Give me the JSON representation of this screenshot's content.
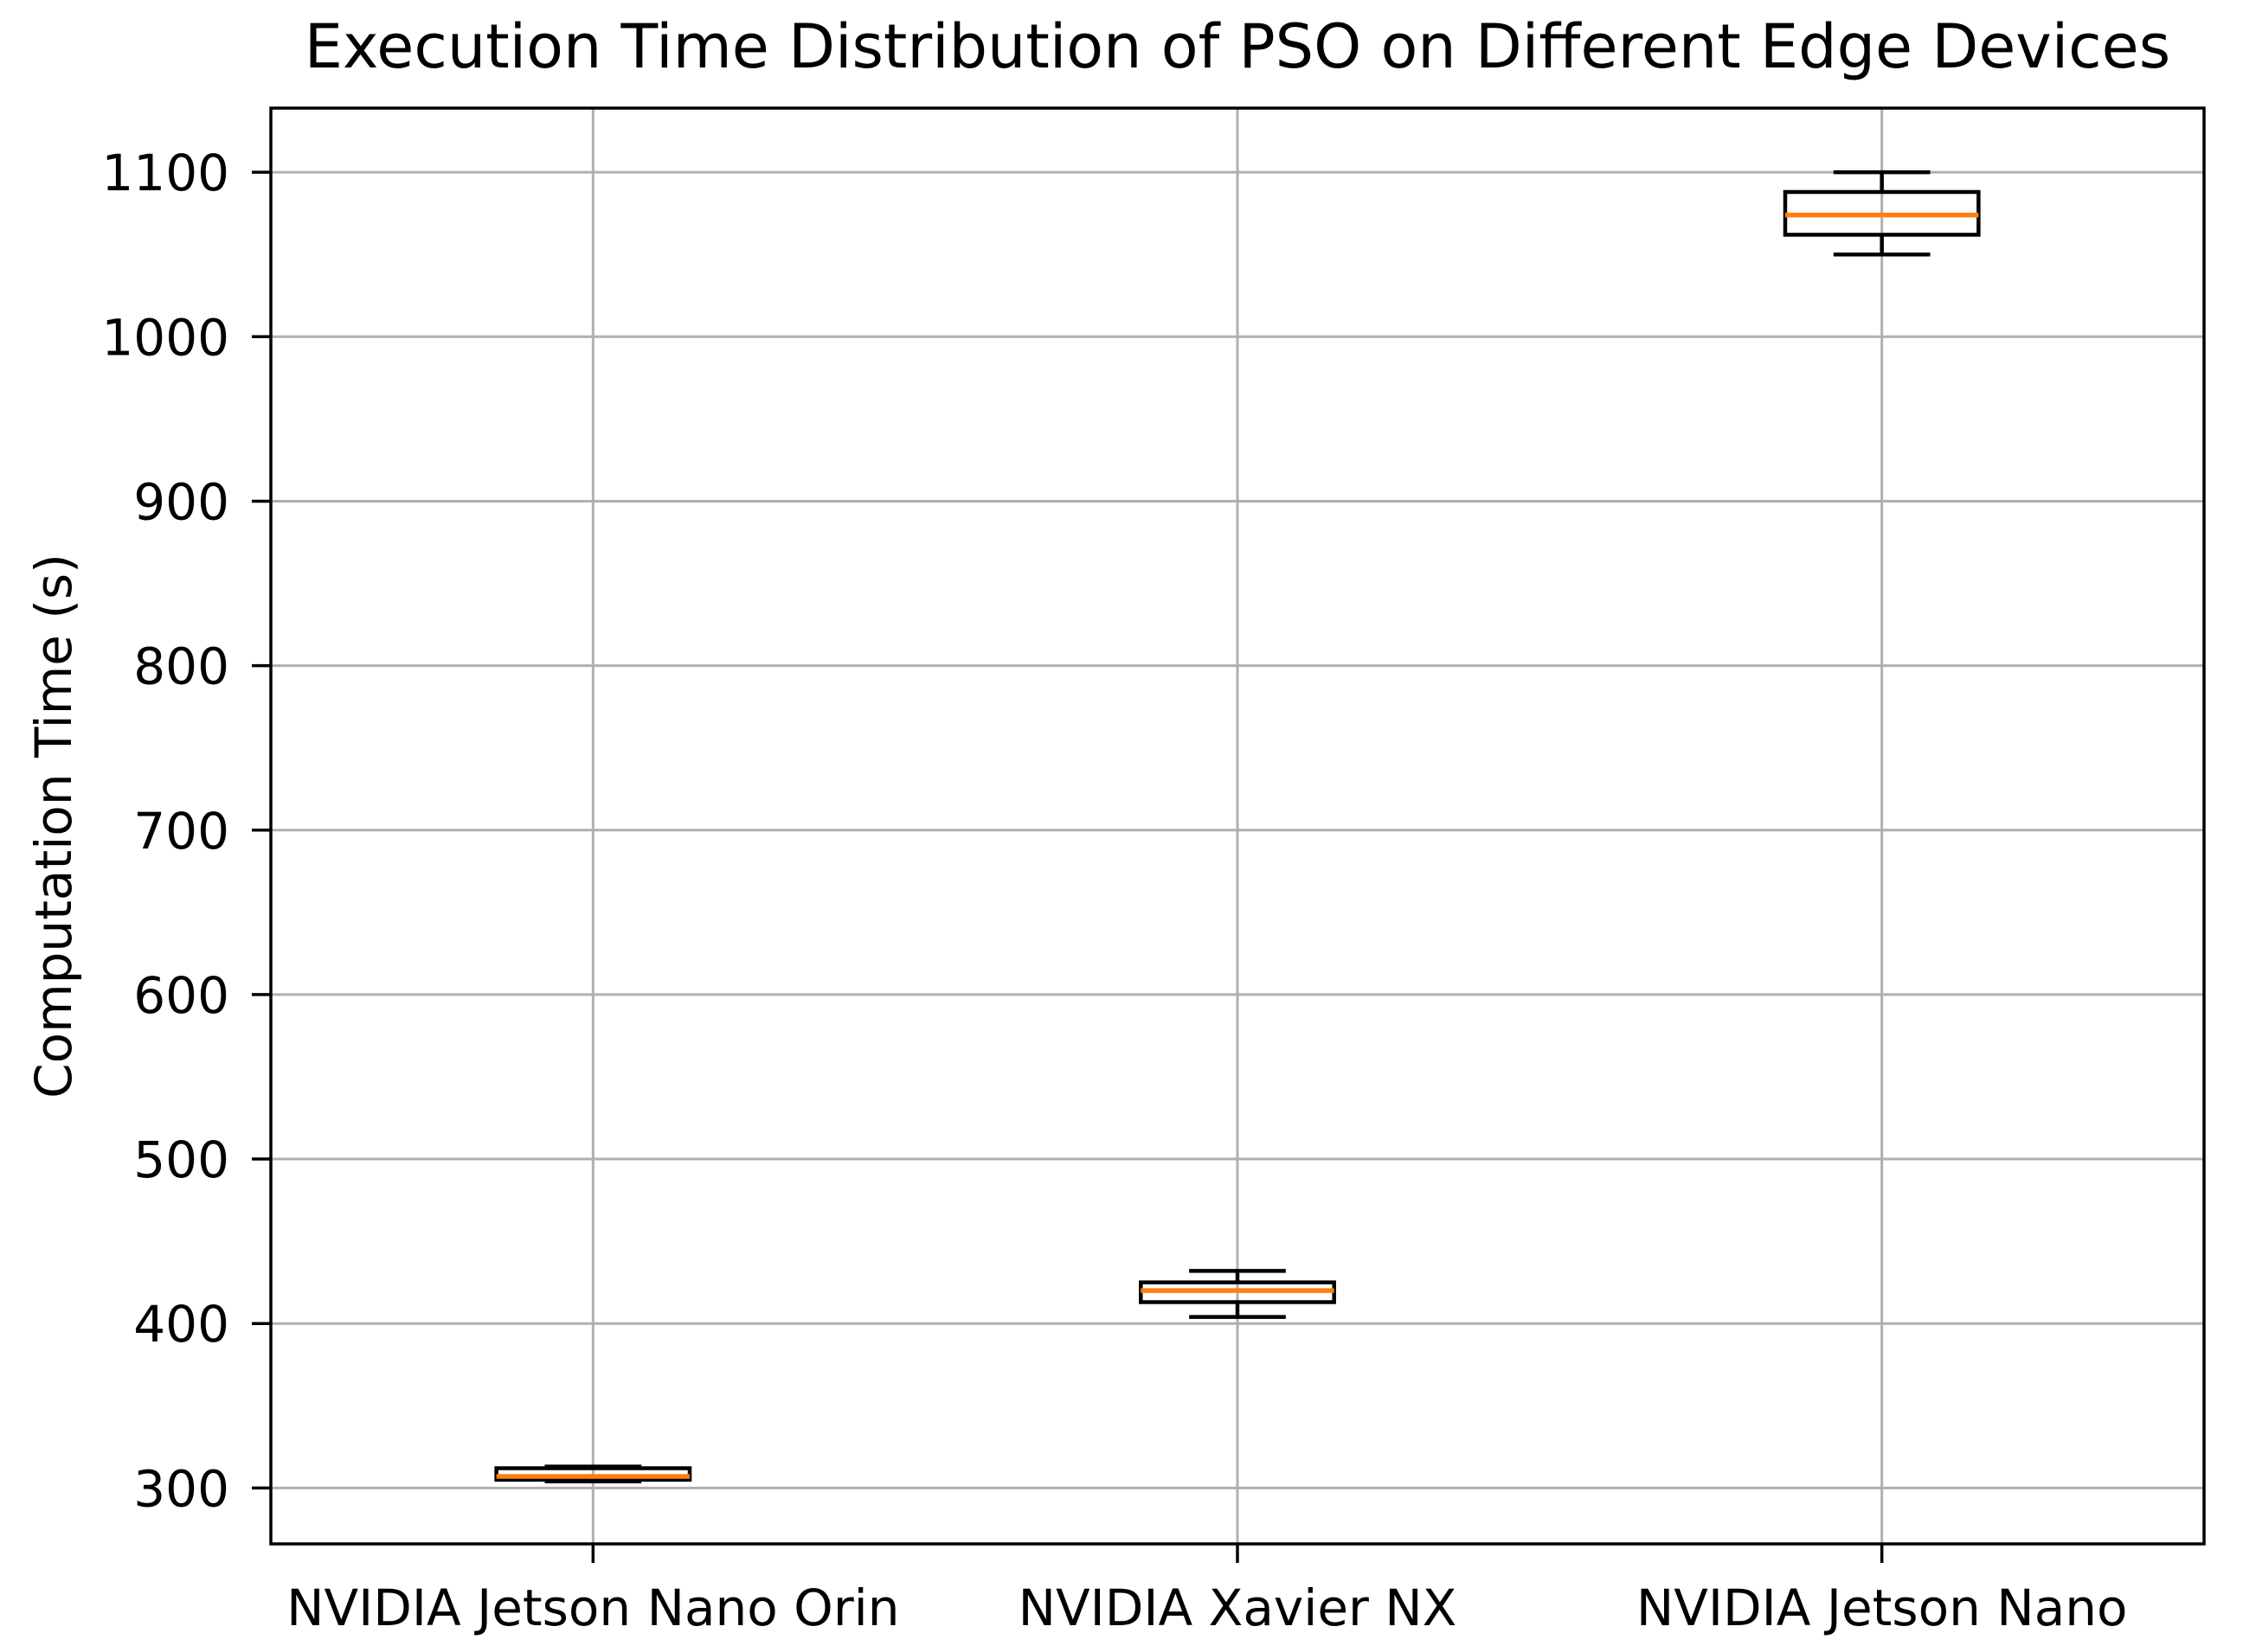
{
  "chart_data": {
    "type": "box",
    "title": "Execution Time Distribution of PSO on Different Edge Devices",
    "ylabel": "Computation Time (s)",
    "xlabel": "",
    "categories": [
      "NVIDIA Jetson Nano Orin",
      "NVIDIA Xavier NX",
      "NVIDIA Jetson Nano"
    ],
    "boxes": [
      {
        "label": "NVIDIA Jetson Nano Orin",
        "whisker_low": 304,
        "q1": 305,
        "median": 307,
        "q3": 312,
        "whisker_high": 313
      },
      {
        "label": "NVIDIA Xavier NX",
        "whisker_low": 404,
        "q1": 413,
        "median": 420,
        "q3": 425,
        "whisker_high": 432
      },
      {
        "label": "NVIDIA Jetson Nano",
        "whisker_low": 1050,
        "q1": 1062,
        "median": 1074,
        "q3": 1088,
        "whisker_high": 1100
      }
    ],
    "yticks": [
      300,
      400,
      500,
      600,
      700,
      800,
      900,
      1000,
      1100
    ],
    "ylim": [
      266,
      1139
    ],
    "grid": true,
    "legend": "none",
    "colors": {
      "median": "#ff7f0e",
      "box_edge": "#000000",
      "whisker": "#000000",
      "grid": "#b0b0b0",
      "spine": "#000000",
      "text": "#000000",
      "background": "#ffffff"
    }
  }
}
